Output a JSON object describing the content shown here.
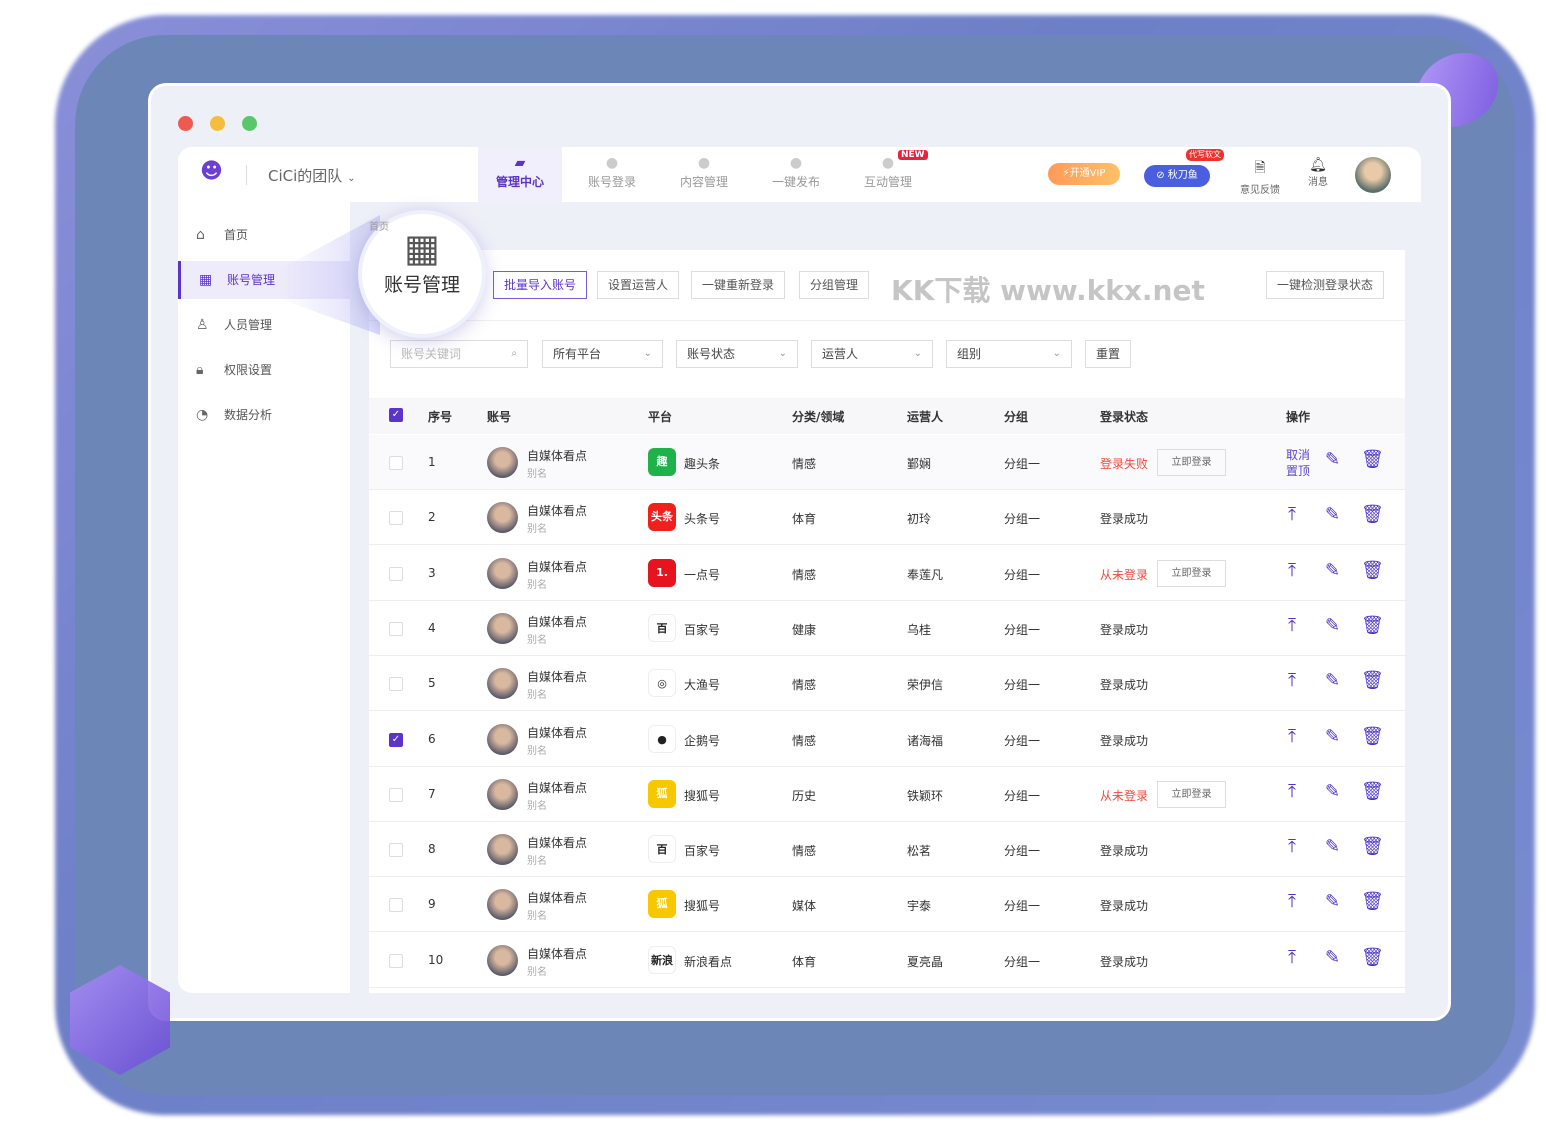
{
  "window": {
    "traffic_lights": [
      "#ee5a4f",
      "#f5bd3d",
      "#5ac76b"
    ]
  },
  "header": {
    "team": "CiCi的团队",
    "tabs": [
      {
        "label": "管理中心",
        "active": true
      },
      {
        "label": "账号登录"
      },
      {
        "label": "内容管理"
      },
      {
        "label": "一键发布"
      },
      {
        "label": "互动管理",
        "badge": "NEW"
      }
    ],
    "vip": "开通VIP",
    "qiudao": "秋刀鱼",
    "qiudao_badge": "代写软文",
    "feedback": "意见反馈",
    "messages": "消息"
  },
  "sidebar": {
    "items": [
      {
        "label": "首页",
        "icon": "home-icon"
      },
      {
        "label": "账号管理",
        "icon": "grid-icon",
        "active": true
      },
      {
        "label": "人员管理",
        "icon": "user-icon"
      },
      {
        "label": "权限设置",
        "icon": "lock-icon"
      },
      {
        "label": "数据分析",
        "icon": "pie-chart-icon"
      }
    ]
  },
  "breadcrumb": "首页",
  "magnifier": {
    "label": "账号管理"
  },
  "toolbar": {
    "import": "批量导入账号",
    "set_operator": "设置运营人",
    "relogin": "一键重新登录",
    "groups": "分组管理",
    "check": "一键检测登录状态"
  },
  "filters": {
    "search_placeholder": "账号关键词",
    "platform": "所有平台",
    "status": "账号状态",
    "operator": "运营人",
    "group": "组别",
    "reset": "重置"
  },
  "table": {
    "headers": [
      "序号",
      "账号",
      "平台",
      "分类/领域",
      "运营人",
      "分组",
      "登录状态",
      "操作"
    ],
    "login_btn": "立即登录",
    "cancel_top": "取消置顶",
    "rows": [
      {
        "no": "1",
        "account": "自媒体看点",
        "alias": "别名",
        "platform": "趣头条",
        "pcolor": "#1fb24a",
        "picon": "趣",
        "category": "情感",
        "operator": "鄞娴",
        "group": "分组一",
        "status": "登录失败",
        "fail": true,
        "checked": false,
        "pinned": true
      },
      {
        "no": "2",
        "account": "自媒体看点",
        "alias": "别名",
        "platform": "头条号",
        "pcolor": "#f0211d",
        "picon": "头条",
        "category": "体育",
        "operator": "初玲",
        "group": "分组一",
        "status": "登录成功"
      },
      {
        "no": "3",
        "account": "自媒体看点",
        "alias": "别名",
        "platform": "一点号",
        "pcolor": "#e5141e",
        "picon": "1.",
        "category": "情感",
        "operator": "奉莲凡",
        "group": "分组一",
        "status": "从未登录",
        "fail": true
      },
      {
        "no": "4",
        "account": "自媒体看点",
        "alias": "别名",
        "platform": "百家号",
        "pcolor": "#ffffff",
        "picon": "百",
        "category": "健康",
        "operator": "乌桂",
        "group": "分组一",
        "status": "登录成功"
      },
      {
        "no": "5",
        "account": "自媒体看点",
        "alias": "别名",
        "platform": "大渔号",
        "pcolor": "#ffffff",
        "picon": "◎",
        "category": "情感",
        "operator": "荣伊信",
        "group": "分组一",
        "status": "登录成功"
      },
      {
        "no": "6",
        "account": "自媒体看点",
        "alias": "别名",
        "platform": "企鹅号",
        "pcolor": "#ffffff",
        "picon": "●",
        "category": "情感",
        "operator": "诸海福",
        "group": "分组一",
        "status": "登录成功",
        "checked": true
      },
      {
        "no": "7",
        "account": "自媒体看点",
        "alias": "别名",
        "platform": "搜狐号",
        "pcolor": "#f7c800",
        "picon": "狐",
        "category": "历史",
        "operator": "铁颖环",
        "group": "分组一",
        "status": "从未登录",
        "fail": true
      },
      {
        "no": "8",
        "account": "自媒体看点",
        "alias": "别名",
        "platform": "百家号",
        "pcolor": "#ffffff",
        "picon": "百",
        "category": "情感",
        "operator": "松茗",
        "group": "分组一",
        "status": "登录成功"
      },
      {
        "no": "9",
        "account": "自媒体看点",
        "alias": "别名",
        "platform": "搜狐号",
        "pcolor": "#f7c800",
        "picon": "狐",
        "category": "媒体",
        "operator": "宇泰",
        "group": "分组一",
        "status": "登录成功"
      },
      {
        "no": "10",
        "account": "自媒体看点",
        "alias": "别名",
        "platform": "新浪看点",
        "pcolor": "#ffffff",
        "picon": "新浪",
        "category": "体育",
        "operator": "夏亮晶",
        "group": "分组一",
        "status": "登录成功"
      }
    ]
  },
  "watermark": "KK下载 www.kkx.net",
  "colors": {
    "accent": "#5b35c9",
    "fail": "#f5483b"
  }
}
